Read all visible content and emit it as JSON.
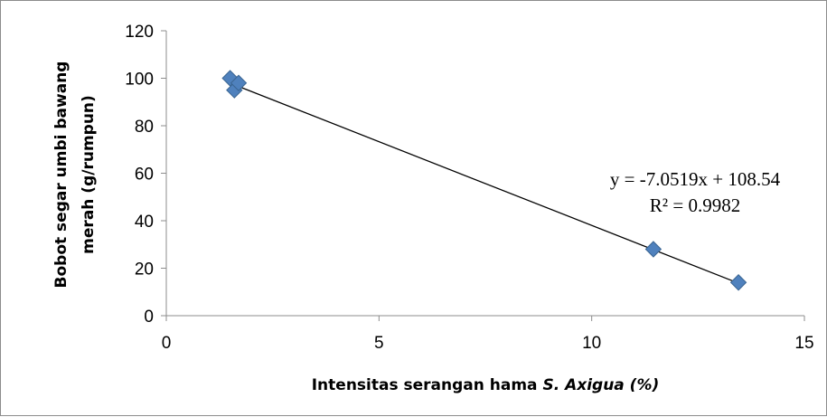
{
  "chart_data": {
    "type": "scatter",
    "title": "",
    "xlabel_main": "Intensitas serangan hama ",
    "xlabel_italic": "S. Axigua (%)",
    "ylabel_line1": "Bobot segar umbi bawang",
    "ylabel_line2": "merah (g/rumpun)",
    "xlim": [
      0,
      15
    ],
    "ylim": [
      0,
      120
    ],
    "x_ticks": [
      0,
      5,
      10,
      15
    ],
    "y_ticks": [
      0,
      20,
      40,
      60,
      80,
      100,
      120
    ],
    "x_tick_labels": [
      "0",
      "5",
      "10",
      "15"
    ],
    "y_tick_labels": [
      "0",
      "20",
      "40",
      "60",
      "80",
      "100",
      "120"
    ],
    "grid": false,
    "series": [
      {
        "marker": "diamond",
        "color": "#4f81bd",
        "points": [
          {
            "x": 1.5,
            "y": 100
          },
          {
            "x": 1.6,
            "y": 95
          },
          {
            "x": 1.7,
            "y": 98
          },
          {
            "x": 11.45,
            "y": 28
          },
          {
            "x": 13.45,
            "y": 14
          }
        ]
      }
    ],
    "trendline": {
      "slope": -7.0519,
      "intercept": 108.54,
      "x_start": 1.5,
      "x_end": 13.45,
      "color": "#000000",
      "equation": "y = -7.0519x + 108.54",
      "r_squared": "R² = 0.9982"
    }
  }
}
